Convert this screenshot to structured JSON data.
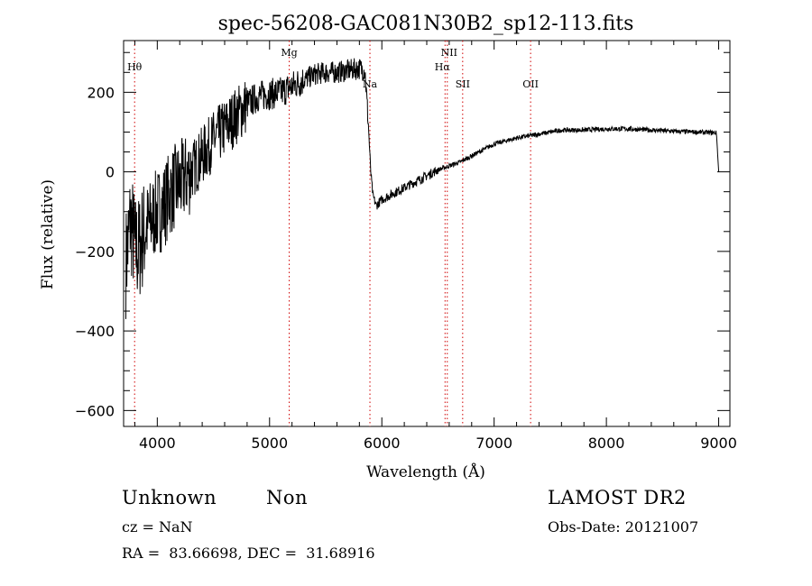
{
  "chart_data": {
    "type": "line",
    "title": "spec-56208-GAC081N30B2_sp12-113.fits",
    "xlabel": "Wavelength (Å)",
    "ylabel": "Flux (relative)",
    "xlim": [
      3700,
      9100
    ],
    "ylim": [
      -640,
      330
    ],
    "xticks": [
      4000,
      5000,
      6000,
      7000,
      8000,
      9000
    ],
    "xtick_labels": [
      "4000",
      "5000",
      "6000",
      "7000",
      "8000",
      "9000"
    ],
    "yticks": [
      -600,
      -400,
      -200,
      0,
      200
    ],
    "ytick_labels": [
      "−600",
      "−400",
      "−200",
      "0",
      "200"
    ],
    "grid": false,
    "series": [
      {
        "x": [
          3720,
          3740,
          3760,
          3780,
          3800,
          3830,
          3860,
          3900,
          3950,
          4000,
          4050,
          4100,
          4150,
          4200,
          4300,
          4400,
          4500,
          4600,
          4700,
          4800,
          4900,
          5000,
          5100,
          5200,
          5300,
          5400,
          5500,
          5600,
          5700,
          5800,
          5850,
          5880,
          5900,
          5920,
          5950,
          6000,
          6100,
          6200,
          6300,
          6400,
          6500,
          6600,
          6700,
          6800,
          6900,
          7000,
          7200,
          7400,
          7600,
          7800,
          8000,
          8200,
          8400,
          8600,
          8800,
          8980,
          9000
        ],
        "values": [
          -230,
          -180,
          -120,
          -150,
          -190,
          -200,
          -170,
          -140,
          -120,
          -100,
          -90,
          -60,
          -40,
          -30,
          0,
          40,
          80,
          110,
          140,
          170,
          190,
          195,
          200,
          215,
          230,
          245,
          250,
          250,
          255,
          260,
          255,
          120,
          5,
          -60,
          -85,
          -70,
          -55,
          -40,
          -25,
          -10,
          5,
          15,
          25,
          40,
          55,
          70,
          85,
          95,
          105,
          105,
          108,
          108,
          105,
          102,
          100,
          98,
          0
        ]
      }
    ],
    "lines": [
      {
        "label": "Hθ",
        "x": 3798
      },
      {
        "label": "Mg",
        "x": 5175
      },
      {
        "label": "Na",
        "x": 5894
      },
      {
        "label": "NII",
        "x": 6583
      },
      {
        "label": "Hα",
        "x": 6563
      },
      {
        "label": "SII",
        "x": 6720
      },
      {
        "label": "OII",
        "x": 7325
      }
    ]
  },
  "info": {
    "class_label": "Unknown",
    "subclass_label": "Non",
    "survey": "LAMOST DR2",
    "cz": "cz = NaN",
    "obs_date": "Obs-Date: 20121007",
    "coords": "RA =  83.66698, DEC =  31.68916"
  },
  "colors": {
    "line": "#000000",
    "marker": "#d00000",
    "background": "#ffffff"
  }
}
